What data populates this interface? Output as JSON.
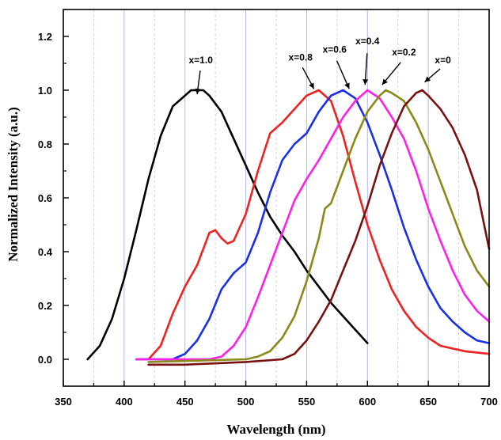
{
  "chart_data": {
    "type": "line",
    "xlabel": "Wavelength (nm)",
    "ylabel": "Normalized Intensity (a.u.)",
    "xlim": [
      350,
      700
    ],
    "ylim": [
      -0.1,
      1.3
    ],
    "xticks": [
      350,
      400,
      450,
      500,
      550,
      600,
      650,
      700
    ],
    "yticks": [
      0.0,
      0.2,
      0.4,
      0.6,
      0.8,
      1.0,
      1.2
    ],
    "xtick_labels": [
      "350",
      "400",
      "450",
      "500",
      "550",
      "600",
      "650",
      "700"
    ],
    "ytick_labels": [
      "0.0",
      "0.2",
      "0.4",
      "0.6",
      "0.8",
      "1.0",
      "1.2"
    ],
    "grid": "vertical dashed lines every 25 nm",
    "series": [
      {
        "name": "x=1.0",
        "color": "#000000",
        "points": [
          [
            370,
            0.0
          ],
          [
            380,
            0.05
          ],
          [
            390,
            0.15
          ],
          [
            400,
            0.3
          ],
          [
            410,
            0.48
          ],
          [
            420,
            0.67
          ],
          [
            430,
            0.83
          ],
          [
            440,
            0.94
          ],
          [
            450,
            0.98
          ],
          [
            455,
            1.0
          ],
          [
            465,
            1.0
          ],
          [
            470,
            0.98
          ],
          [
            480,
            0.92
          ],
          [
            490,
            0.82
          ],
          [
            500,
            0.72
          ],
          [
            510,
            0.62
          ],
          [
            520,
            0.53
          ],
          [
            530,
            0.46
          ],
          [
            540,
            0.4
          ],
          [
            550,
            0.33
          ],
          [
            560,
            0.27
          ],
          [
            570,
            0.21
          ],
          [
            580,
            0.16
          ],
          [
            590,
            0.11
          ],
          [
            600,
            0.06
          ]
        ]
      },
      {
        "name": "x=0.8",
        "color": "#ee2222",
        "points": [
          [
            410,
            0.0
          ],
          [
            420,
            0.0
          ],
          [
            430,
            0.05
          ],
          [
            440,
            0.17
          ],
          [
            450,
            0.27
          ],
          [
            460,
            0.35
          ],
          [
            470,
            0.47
          ],
          [
            475,
            0.48
          ],
          [
            480,
            0.45
          ],
          [
            485,
            0.43
          ],
          [
            490,
            0.44
          ],
          [
            500,
            0.54
          ],
          [
            510,
            0.7
          ],
          [
            520,
            0.84
          ],
          [
            530,
            0.88
          ],
          [
            540,
            0.93
          ],
          [
            550,
            0.98
          ],
          [
            560,
            1.0
          ],
          [
            570,
            0.96
          ],
          [
            580,
            0.83
          ],
          [
            590,
            0.66
          ],
          [
            600,
            0.5
          ],
          [
            610,
            0.37
          ],
          [
            620,
            0.26
          ],
          [
            630,
            0.18
          ],
          [
            640,
            0.12
          ],
          [
            650,
            0.08
          ],
          [
            660,
            0.05
          ],
          [
            680,
            0.03
          ],
          [
            700,
            0.02
          ]
        ]
      },
      {
        "name": "x=0.6",
        "color": "#1a2fe8",
        "points": [
          [
            410,
            0.0
          ],
          [
            440,
            0.0
          ],
          [
            450,
            0.02
          ],
          [
            460,
            0.07
          ],
          [
            470,
            0.15
          ],
          [
            480,
            0.26
          ],
          [
            490,
            0.32
          ],
          [
            500,
            0.36
          ],
          [
            510,
            0.47
          ],
          [
            520,
            0.62
          ],
          [
            530,
            0.74
          ],
          [
            540,
            0.8
          ],
          [
            550,
            0.84
          ],
          [
            560,
            0.92
          ],
          [
            570,
            0.98
          ],
          [
            580,
            1.0
          ],
          [
            590,
            0.97
          ],
          [
            600,
            0.88
          ],
          [
            610,
            0.76
          ],
          [
            620,
            0.63
          ],
          [
            630,
            0.49
          ],
          [
            640,
            0.37
          ],
          [
            650,
            0.27
          ],
          [
            660,
            0.19
          ],
          [
            670,
            0.14
          ],
          [
            680,
            0.1
          ],
          [
            690,
            0.07
          ],
          [
            700,
            0.06
          ]
        ]
      },
      {
        "name": "x=0.4",
        "color": "#ff1fe8",
        "points": [
          [
            410,
            0.0
          ],
          [
            470,
            0.0
          ],
          [
            480,
            0.01
          ],
          [
            490,
            0.05
          ],
          [
            500,
            0.12
          ],
          [
            510,
            0.23
          ],
          [
            520,
            0.35
          ],
          [
            530,
            0.47
          ],
          [
            540,
            0.59
          ],
          [
            550,
            0.67
          ],
          [
            560,
            0.74
          ],
          [
            570,
            0.82
          ],
          [
            580,
            0.9
          ],
          [
            590,
            0.96
          ],
          [
            600,
            1.0
          ],
          [
            610,
            0.97
          ],
          [
            620,
            0.9
          ],
          [
            630,
            0.82
          ],
          [
            640,
            0.7
          ],
          [
            650,
            0.56
          ],
          [
            660,
            0.44
          ],
          [
            670,
            0.33
          ],
          [
            680,
            0.24
          ],
          [
            690,
            0.18
          ],
          [
            700,
            0.14
          ]
        ]
      },
      {
        "name": "x=0.2",
        "color": "#8a8a1a",
        "points": [
          [
            420,
            -0.01
          ],
          [
            500,
            0.0
          ],
          [
            510,
            0.01
          ],
          [
            520,
            0.03
          ],
          [
            530,
            0.08
          ],
          [
            540,
            0.16
          ],
          [
            550,
            0.29
          ],
          [
            560,
            0.45
          ],
          [
            565,
            0.56
          ],
          [
            570,
            0.58
          ],
          [
            580,
            0.7
          ],
          [
            590,
            0.82
          ],
          [
            600,
            0.92
          ],
          [
            610,
            0.98
          ],
          [
            615,
            1.0
          ],
          [
            620,
            0.99
          ],
          [
            630,
            0.96
          ],
          [
            640,
            0.88
          ],
          [
            650,
            0.78
          ],
          [
            660,
            0.66
          ],
          [
            670,
            0.54
          ],
          [
            680,
            0.42
          ],
          [
            690,
            0.33
          ],
          [
            700,
            0.27
          ]
        ]
      },
      {
        "name": "x=0",
        "color": "#7a1010",
        "points": [
          [
            420,
            -0.02
          ],
          [
            450,
            -0.02
          ],
          [
            500,
            -0.01
          ],
          [
            530,
            0.0
          ],
          [
            540,
            0.02
          ],
          [
            550,
            0.07
          ],
          [
            560,
            0.14
          ],
          [
            570,
            0.22
          ],
          [
            580,
            0.33
          ],
          [
            590,
            0.44
          ],
          [
            600,
            0.57
          ],
          [
            610,
            0.72
          ],
          [
            620,
            0.84
          ],
          [
            630,
            0.94
          ],
          [
            640,
            0.99
          ],
          [
            645,
            1.0
          ],
          [
            650,
            0.98
          ],
          [
            660,
            0.93
          ],
          [
            670,
            0.86
          ],
          [
            680,
            0.76
          ],
          [
            690,
            0.63
          ],
          [
            700,
            0.41
          ]
        ]
      }
    ],
    "annotations": [
      {
        "text": "x=1.0",
        "label_at": [
          463,
          1.1
        ],
        "arrow_to": [
          460,
          0.985
        ]
      },
      {
        "text": "x=0.8",
        "label_at": [
          545,
          1.11
        ],
        "arrow_to": [
          556,
          1.005
        ]
      },
      {
        "text": "x=0.6",
        "label_at": [
          573,
          1.14
        ],
        "arrow_to": [
          585,
          1.005
        ]
      },
      {
        "text": "x=0.4",
        "label_at": [
          600,
          1.17
        ],
        "arrow_to": [
          598,
          1.02
        ]
      },
      {
        "text": "x=0.2",
        "label_at": [
          630,
          1.13
        ],
        "arrow_to": [
          612,
          1.02
        ]
      },
      {
        "text": "x=0",
        "label_at": [
          662,
          1.1
        ],
        "arrow_to": [
          647,
          1.03
        ]
      }
    ]
  }
}
